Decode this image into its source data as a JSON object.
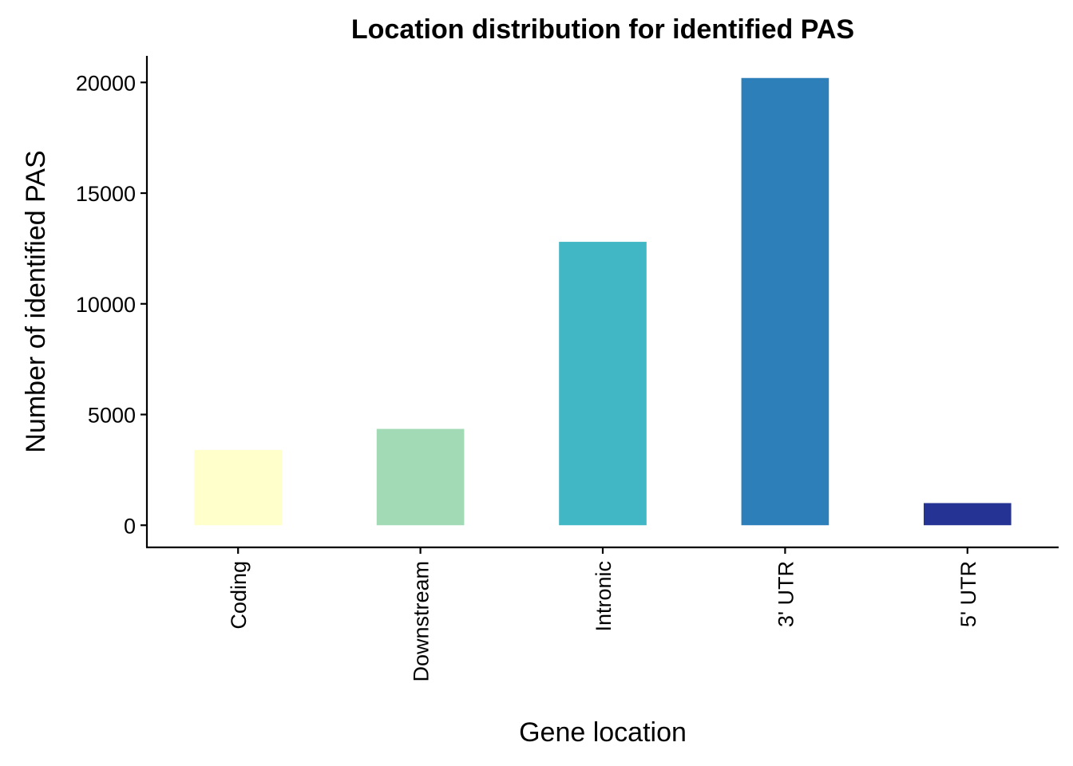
{
  "chart_data": {
    "type": "bar",
    "title": "Location distribution for identified PAS",
    "xlabel": "Gene location",
    "ylabel": "Number of identified PAS",
    "categories": [
      "Coding",
      "Downstream",
      "Intronic",
      "3' UTR",
      "5' UTR"
    ],
    "values": [
      3400,
      4350,
      12800,
      20200,
      1000
    ],
    "colors": [
      "#FFFFCC",
      "#A1DAB4",
      "#41B6C4",
      "#2C7FB8",
      "#253494"
    ],
    "ylim": [
      -1000,
      21200
    ],
    "yticks": [
      0,
      5000,
      10000,
      15000,
      20000
    ],
    "grid": false,
    "legend": "none"
  }
}
